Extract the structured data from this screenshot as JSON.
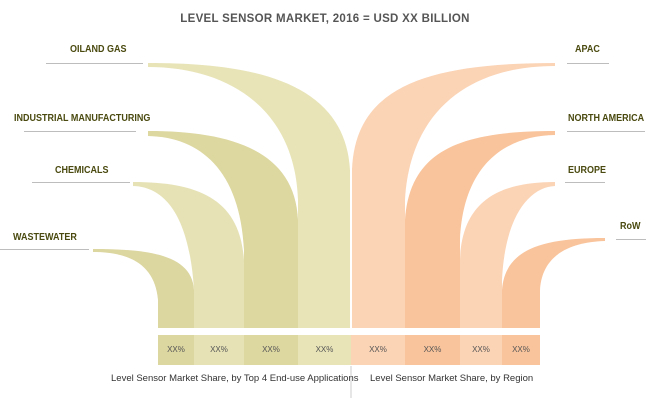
{
  "title": "LEVEL SENSOR MARKET, 2016 = USD XX BILLION",
  "applications": [
    {
      "label": "OILAND GAS",
      "share": "XX%",
      "color": "#e8e4b8"
    },
    {
      "label": "INDUSTRIAL MANUFACTURING",
      "share": "XX%",
      "color": "#ddd7a0"
    },
    {
      "label": "CHEMICALS",
      "share": "XX%",
      "color": "#e6e2b6"
    },
    {
      "label": "WASTEWATER",
      "share": "XX%",
      "color": "#dcd6a0"
    }
  ],
  "regions": [
    {
      "label": "APAC",
      "share": "XX%",
      "color": "#fbd3b5"
    },
    {
      "label": "NORTH AMERICA",
      "share": "XX%",
      "color": "#f9c49c"
    },
    {
      "label": "EUROPE",
      "share": "XX%",
      "color": "#fbd3b5"
    },
    {
      "label": "RoW",
      "share": "XX%",
      "color": "#f9c49c"
    }
  ],
  "captions": {
    "left": "Level Sensor Market Share, by Top 4 End-use Applications",
    "right": "Level Sensor Market Share, by Region"
  }
}
